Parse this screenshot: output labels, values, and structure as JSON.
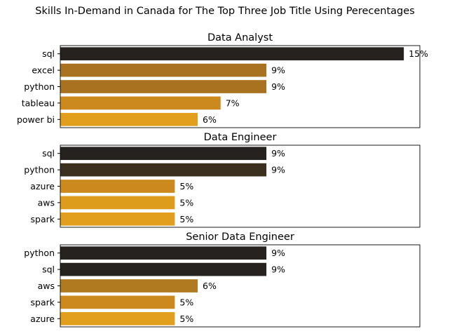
{
  "suptitle": "Skills In-Demand in Canada for The Top Three Job Title Using Perecentages",
  "chart_data": [
    {
      "type": "bar",
      "orientation": "horizontal",
      "title": "Data Analyst",
      "xlabel": "",
      "ylabel": "",
      "xlim": [
        0,
        15.7
      ],
      "categories": [
        "sql",
        "excel",
        "python",
        "tableau",
        "power bi"
      ],
      "values": [
        15,
        9,
        9,
        7,
        6
      ],
      "labels": [
        "15%",
        "9%",
        "9%",
        "7%",
        "6%"
      ],
      "colors": [
        "#26221f",
        "#a87220",
        "#a87220",
        "#cc8a1e",
        "#e29f1d"
      ],
      "grid": false,
      "legend": "none"
    },
    {
      "type": "bar",
      "orientation": "horizontal",
      "title": "Data Engineer",
      "xlabel": "",
      "ylabel": "",
      "xlim": [
        0,
        15.7
      ],
      "categories": [
        "sql",
        "python",
        "azure",
        "aws",
        "spark"
      ],
      "values": [
        9,
        9,
        5,
        5,
        5
      ],
      "labels": [
        "9%",
        "9%",
        "5%",
        "5%",
        "5%"
      ],
      "colors": [
        "#26221f",
        "#3b301d",
        "#cc8a1e",
        "#de9c1d",
        "#e29f1d"
      ],
      "grid": false,
      "legend": "none"
    },
    {
      "type": "bar",
      "orientation": "horizontal",
      "title": "Senior Data Engineer",
      "xlabel": "",
      "ylabel": "",
      "xlim": [
        0,
        15.7
      ],
      "categories": [
        "python",
        "sql",
        "aws",
        "spark",
        "azure"
      ],
      "values": [
        9,
        9,
        6,
        5,
        5
      ],
      "labels": [
        "9%",
        "9%",
        "6%",
        "5%",
        "5%"
      ],
      "colors": [
        "#26221f",
        "#26221f",
        "#b07a21",
        "#cc8a1e",
        "#e29f1d"
      ],
      "grid": false,
      "legend": "none"
    }
  ]
}
